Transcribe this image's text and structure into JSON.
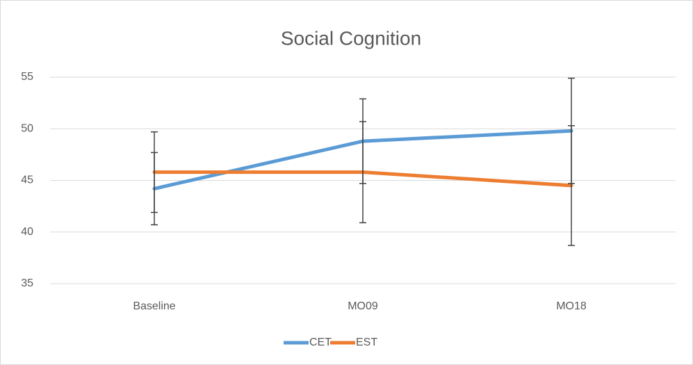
{
  "chart_data": {
    "type": "line",
    "title": "Social Cognition",
    "categories": [
      "Baseline",
      "MO09",
      "MO18"
    ],
    "series": [
      {
        "name": "CET",
        "color": "#5b9bd5",
        "values": [
          44.2,
          48.8,
          49.8
        ],
        "errors": [
          3.5,
          4.1,
          5.1
        ]
      },
      {
        "name": "EST",
        "color": "#ed7d31",
        "values": [
          45.8,
          45.8,
          44.5
        ],
        "errors": [
          3.9,
          4.9,
          5.8
        ]
      }
    ],
    "ylim": [
      35,
      55
    ],
    "yticks": [
      35,
      40,
      45,
      50,
      55
    ],
    "grid": true,
    "legend": "bottom"
  }
}
